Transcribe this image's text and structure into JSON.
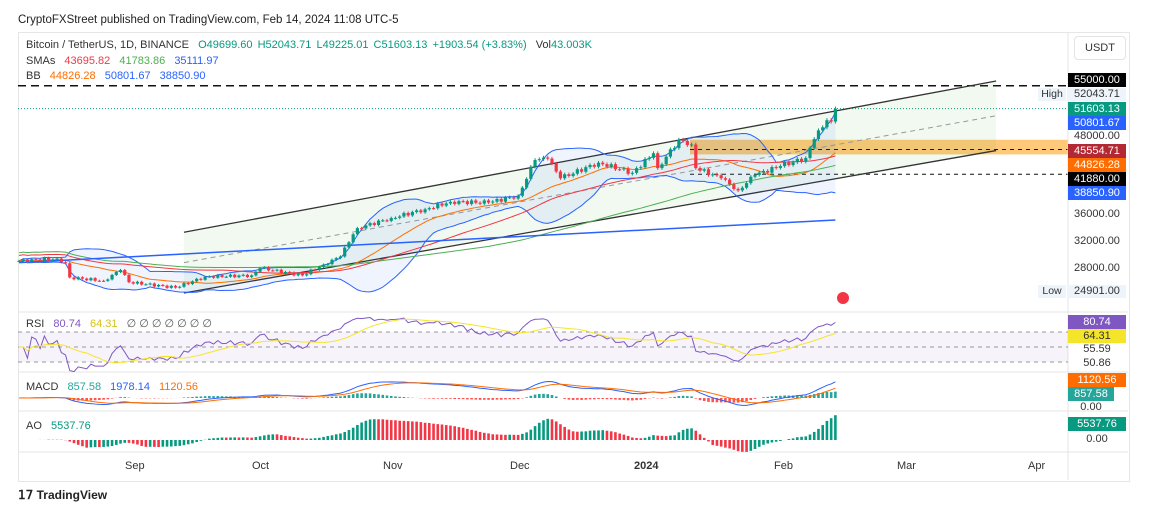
{
  "publisher_line": "CryptoFXStreet published on TradingView.com, Feb 14, 2024 11:08 UTC-5",
  "footer_brand": "TradingView",
  "currency_button": "USDT",
  "legend": {
    "symbol": "Bitcoin / TetherUS, 1D, BINANCE",
    "open": "O49699.60",
    "high": "H52043.71",
    "low": "L49225.01",
    "close": "C51603.13",
    "change": "+1903.54 (+3.83%)",
    "volume_label": "Vol",
    "volume": "43.003K",
    "sma_label": "SMAs",
    "sma": [
      "43695.82",
      "41783.86",
      "35111.97"
    ],
    "bb_label": "BB",
    "bb": [
      "44826.28",
      "50801.67",
      "38850.90"
    ],
    "rsi_label": "RSI",
    "rsi": [
      "80.74",
      "64.31"
    ],
    "rsi_extra": "∅ ∅ ∅ ∅ ∅ ∅ ∅",
    "macd_label": "MACD",
    "macd": [
      "857.58",
      "1978.14",
      "1120.56"
    ],
    "ao_label": "AO",
    "ao": "5537.76"
  },
  "price_axis": {
    "ticks": [
      "48000.00",
      "36000.00",
      "32000.00",
      "28000.00"
    ],
    "tags": [
      {
        "text": "55000.00",
        "color": "#000000"
      },
      {
        "text": "51603.13",
        "color": "#089981"
      },
      {
        "text": "50801.67",
        "color": "#2962ff"
      },
      {
        "text": "45554.71",
        "color": "#b22833"
      },
      {
        "text": "44826.28",
        "color": "#ff6d00"
      },
      {
        "text": "41880.00",
        "color": "#000000"
      },
      {
        "text": "38850.90",
        "color": "#2962ff"
      }
    ],
    "high_label": "High",
    "high_value": "52043.71",
    "low_label": "Low",
    "low_value": "24901.00"
  },
  "rsi_axis": {
    "tags": [
      {
        "text": "80.74",
        "color": "#7e57c2"
      },
      {
        "text": "64.31",
        "color": "#f5e52a"
      }
    ],
    "ticks": [
      "55.59",
      "50.86"
    ]
  },
  "macd_axis": {
    "tags": [
      {
        "text": "1120.56",
        "color": "#ff6d00"
      },
      {
        "text": "857.58",
        "color": "#26a69a"
      }
    ],
    "ticks": [
      "0.00"
    ]
  },
  "ao_axis": {
    "tags": [
      {
        "text": "5537.76",
        "color": "#089981"
      }
    ],
    "ticks": [
      "0.00"
    ]
  },
  "time_axis": [
    "Sep",
    "Oct",
    "Nov",
    "Dec",
    "2024",
    "Feb",
    "Mar",
    "Apr"
  ],
  "chart_data": {
    "type": "candlestick",
    "symbol": "Bitcoin / TetherUS",
    "interval": "1D",
    "ylim": [
      24000,
      56000
    ],
    "key_closes": [
      [
        "2023-08-05",
        29050
      ],
      [
        "2023-08-14",
        29400
      ],
      [
        "2023-08-16",
        28700
      ],
      [
        "2023-08-17",
        26600
      ],
      [
        "2023-08-25",
        26100
      ],
      [
        "2023-08-29",
        27700
      ],
      [
        "2023-08-31",
        25900
      ],
      [
        "2023-09-11",
        25100
      ],
      [
        "2023-09-18",
        26700
      ],
      [
        "2023-09-29",
        26900
      ],
      [
        "2023-10-01",
        27990
      ],
      [
        "2023-10-11",
        26900
      ],
      [
        "2023-10-16",
        28500
      ],
      [
        "2023-10-20",
        29700
      ],
      [
        "2023-10-23",
        33000
      ],
      [
        "2023-10-24",
        33900
      ],
      [
        "2023-11-01",
        35400
      ],
      [
        "2023-11-09",
        36700
      ],
      [
        "2023-11-15",
        37800
      ],
      [
        "2023-11-24",
        37700
      ],
      [
        "2023-12-01",
        38700
      ],
      [
        "2023-12-05",
        44000
      ],
      [
        "2023-12-08",
        44200
      ],
      [
        "2023-12-11",
        41300
      ],
      [
        "2023-12-20",
        43600
      ],
      [
        "2023-12-28",
        42100
      ],
      [
        "2024-01-02",
        45000
      ],
      [
        "2024-01-03",
        42800
      ],
      [
        "2024-01-08",
        47000
      ],
      [
        "2024-01-11",
        46300
      ],
      [
        "2024-01-12",
        42800
      ],
      [
        "2024-01-18",
        41300
      ],
      [
        "2024-01-22",
        39500
      ],
      [
        "2024-01-26",
        41800
      ],
      [
        "2024-02-01",
        43100
      ],
      [
        "2024-02-07",
        44300
      ],
      [
        "2024-02-09",
        47100
      ],
      [
        "2024-02-12",
        49900
      ],
      [
        "2024-02-13",
        49700
      ],
      [
        "2024-02-14",
        51603
      ]
    ],
    "horizontal_levels": [
      55000,
      45554.71,
      41880
    ],
    "supply_zone": [
      44826,
      47000
    ],
    "channel": {
      "upper": [
        [
          "2023-09-13",
          33300
        ],
        [
          "2024-03-23",
          55700
        ]
      ],
      "lower": [
        [
          "2023-09-13",
          24300
        ],
        [
          "2024-03-23",
          45400
        ]
      ]
    },
    "sma200": [
      [
        "2023-08-05",
        28800
      ],
      [
        "2024-02-14",
        35112
      ]
    ],
    "colors": {
      "up": "#089981",
      "down": "#f23645",
      "bb": "#2962ff",
      "sma_fast": "#f23645",
      "sma_mid": "#4caf50",
      "sma_slow": "#2962ff",
      "rsi": "#7e57c2",
      "zone": "#ffb74d"
    }
  }
}
